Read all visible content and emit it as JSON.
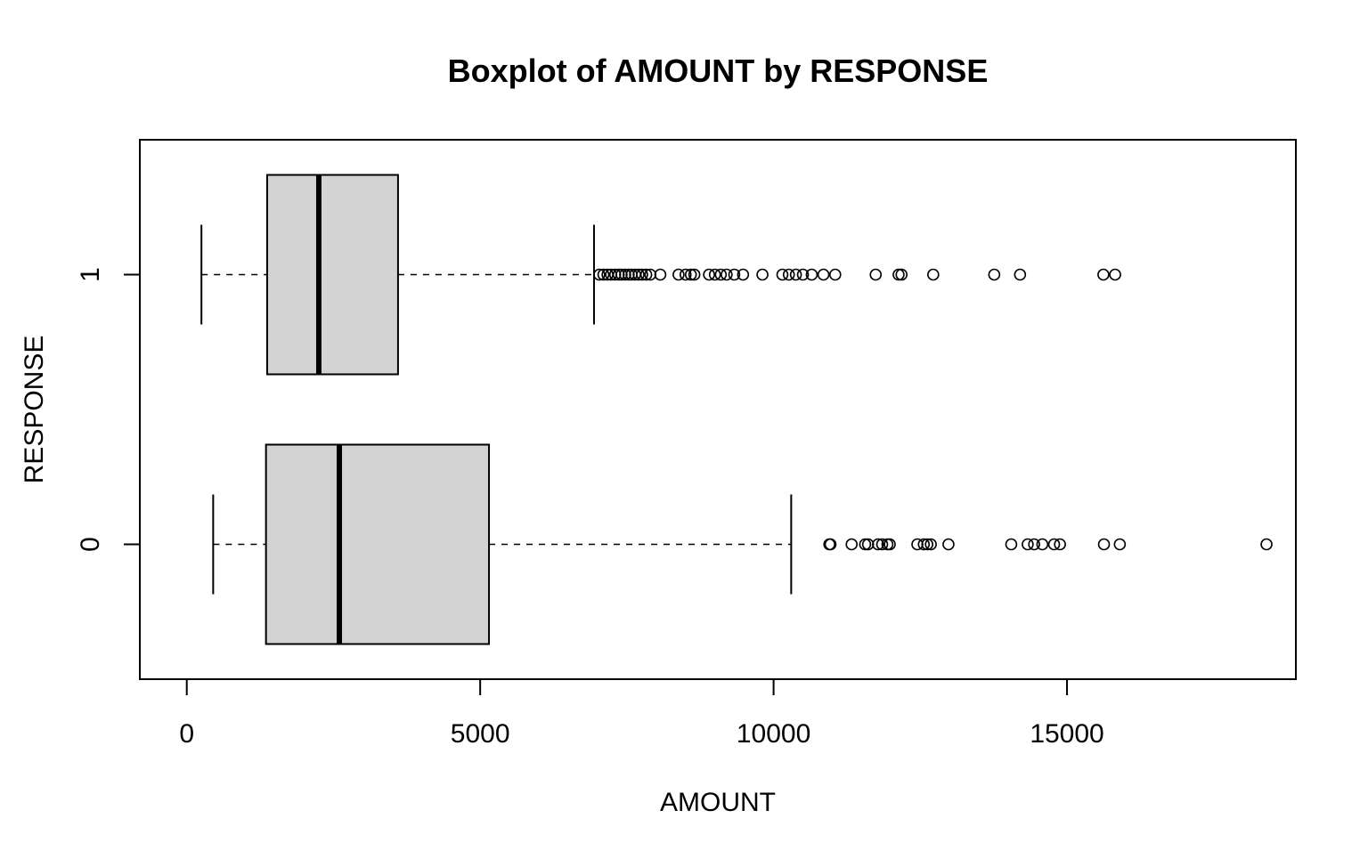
{
  "chart_data": {
    "type": "boxplot",
    "orientation": "horizontal",
    "title": "Boxplot of AMOUNT by RESPONSE",
    "xlabel": "AMOUNT",
    "ylabel": "RESPONSE",
    "xlim": [
      -800,
      18900
    ],
    "x_ticks": [
      0,
      5000,
      10000,
      15000
    ],
    "x_tick_labels": [
      "0",
      "5000",
      "10000",
      "15000"
    ],
    "categories": [
      "0",
      "1"
    ],
    "grid": false,
    "legend": "none",
    "box_fill": "#d3d3d3",
    "line_color": "#000000",
    "boxes": [
      {
        "category": "0",
        "whisker_low": 450,
        "q1": 1350,
        "median": 2600,
        "q3": 5150,
        "whisker_high": 10300,
        "outliers": [
          10950,
          10970,
          11330,
          11560,
          11610,
          11780,
          11850,
          11940,
          11980,
          12450,
          12560,
          12620,
          12680,
          12980,
          14050,
          14330,
          14440,
          14580,
          14780,
          14880,
          15630,
          15900,
          18400
        ]
      },
      {
        "category": "1",
        "whisker_low": 250,
        "q1": 1370,
        "median": 2250,
        "q3": 3600,
        "whisker_high": 6940,
        "outliers": [
          7030,
          7100,
          7170,
          7230,
          7300,
          7360,
          7410,
          7470,
          7530,
          7580,
          7640,
          7700,
          7760,
          7830,
          7900,
          8070,
          8380,
          8500,
          8590,
          8650,
          8900,
          9000,
          9100,
          9200,
          9330,
          9480,
          9810,
          10150,
          10260,
          10380,
          10500,
          10650,
          10850,
          11050,
          11740,
          12130,
          12180,
          12720,
          13760,
          14200,
          15620,
          15820
        ]
      }
    ]
  }
}
